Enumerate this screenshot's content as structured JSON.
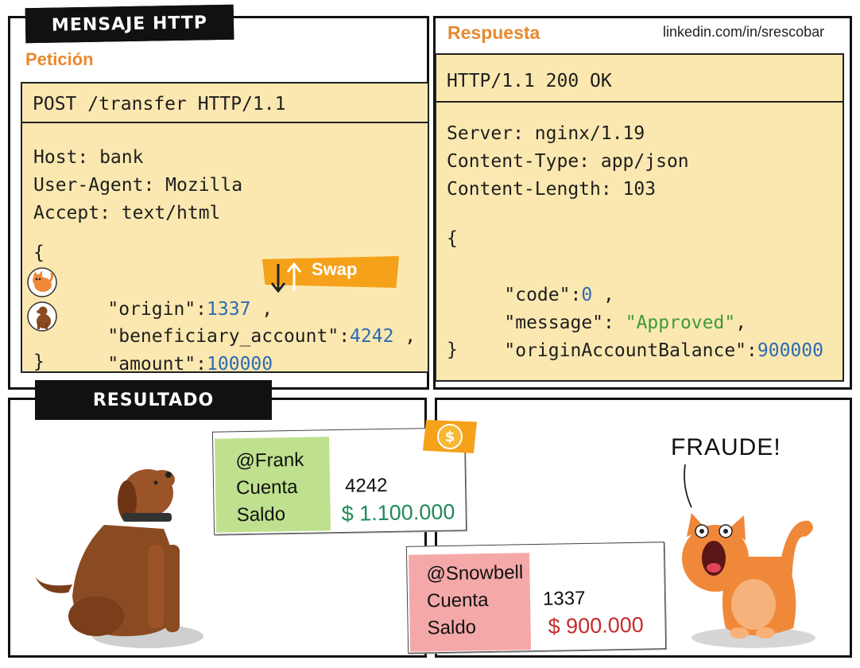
{
  "header": {
    "title": "MENSAJE HTTP",
    "credit": "linkedin.com/in/srescobar"
  },
  "request": {
    "label": "Petición",
    "start_line": "POST /transfer HTTP/1.1",
    "headers": [
      "Host: bank",
      "User-Agent: Mozilla",
      "Accept: text/html"
    ],
    "open_brace": "{",
    "close_brace": "}",
    "body": {
      "origin_key": "\"origin\"",
      "origin_value": "1337",
      "beneficiary_key": "\"beneficiary_account\"",
      "beneficiary_value": "4242",
      "amount_key": "\"amount\"",
      "amount_value": "100000"
    },
    "swap_label": "Swap"
  },
  "response": {
    "label": "Respuesta",
    "status_line": "HTTP/1.1 200 OK",
    "headers": [
      "Server: nginx/1.19",
      "Content-Type: app/json",
      "Content-Length: 103"
    ],
    "open_brace": "{",
    "close_brace": "}",
    "body": {
      "code_key": "\"code\"",
      "code_value": "0",
      "message_key": "\"message\"",
      "message_value": "\"Approved\"",
      "balance_key": "\"originAccountBalance\"",
      "balance_value": "900000"
    }
  },
  "result": {
    "title": "RESULTADO",
    "fraud_text": "FRAUDE!",
    "dollar_symbol": "$",
    "frank": {
      "user": "@Frank",
      "cuenta_label": "Cuenta",
      "cuenta_value": "4242",
      "saldo_label": "Saldo",
      "saldo_value": "$ 1.100.000"
    },
    "snowbell": {
      "user": "@Snowbell",
      "cuenta_label": "Cuenta",
      "cuenta_value": "1337",
      "saldo_label": "Saldo",
      "saldo_value": "$ 900.000"
    }
  },
  "colors": {
    "code_bg": "#fbe8b0",
    "accent_orange": "#e8892e",
    "green_card": "#bfe08e",
    "red_card": "#f4a9a8",
    "number_blue": "#2c6ab3",
    "string_green": "#3f9a3a",
    "money_green": "#1f8a5a",
    "money_red": "#c62c2c"
  },
  "icons": [
    "cat-avatar-icon",
    "dog-avatar-icon",
    "swap-arrows-icon",
    "dollar-coin-icon",
    "dog-illustration",
    "cat-illustration",
    "speech-line-icon"
  ]
}
